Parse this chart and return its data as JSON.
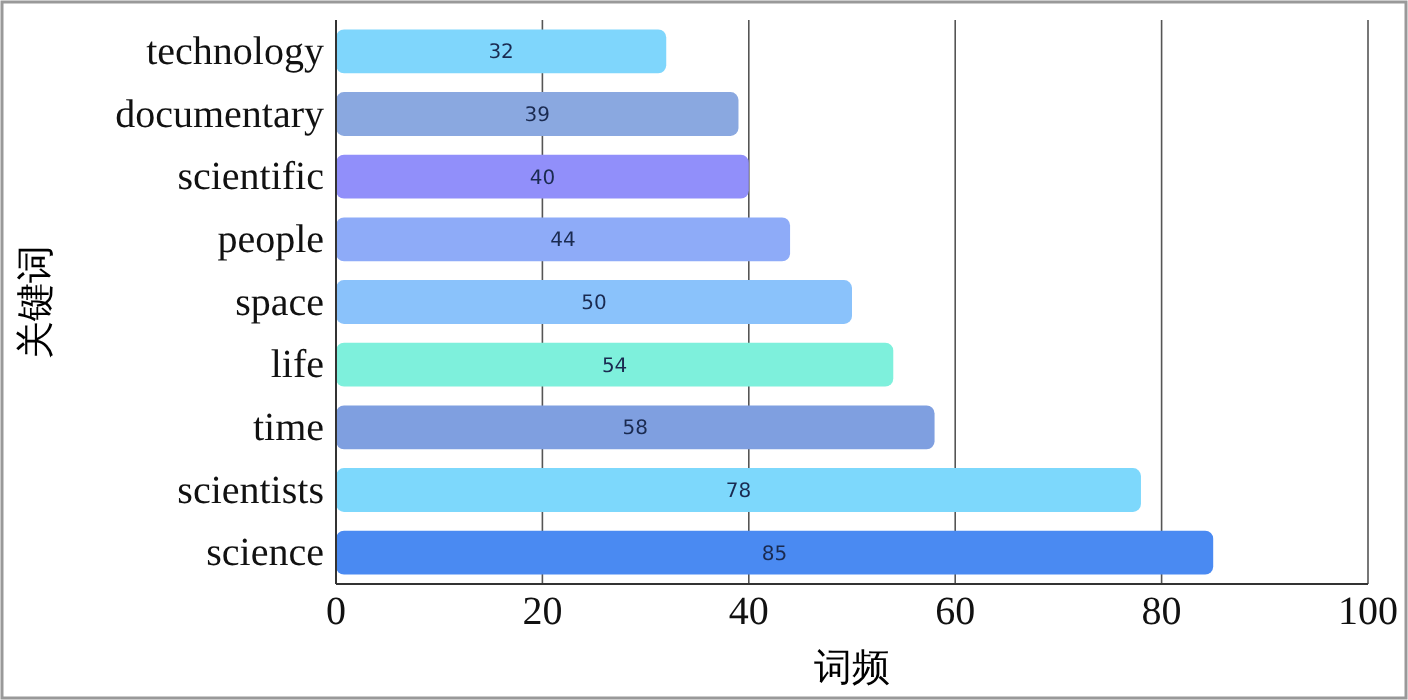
{
  "chart_data": {
    "type": "bar",
    "orientation": "horizontal",
    "xlabel": "词频",
    "ylabel": "关键词",
    "categories": [
      "technology",
      "documentary",
      "scientific",
      "people",
      "space",
      "life",
      "time",
      "scientists",
      "science"
    ],
    "values": [
      32,
      39,
      40,
      44,
      50,
      54,
      58,
      78,
      85
    ],
    "colors": [
      "#7fd6fc",
      "#8aa8e0",
      "#918ffa",
      "#8eabf8",
      "#8ac2fb",
      "#7ef0dc",
      "#7f9fe0",
      "#7dd8fc",
      "#4a8af2"
    ],
    "xlim": [
      0,
      100
    ],
    "xticks": [
      0,
      20,
      40,
      60,
      80,
      100
    ],
    "grid": "x",
    "data_labels": true
  }
}
